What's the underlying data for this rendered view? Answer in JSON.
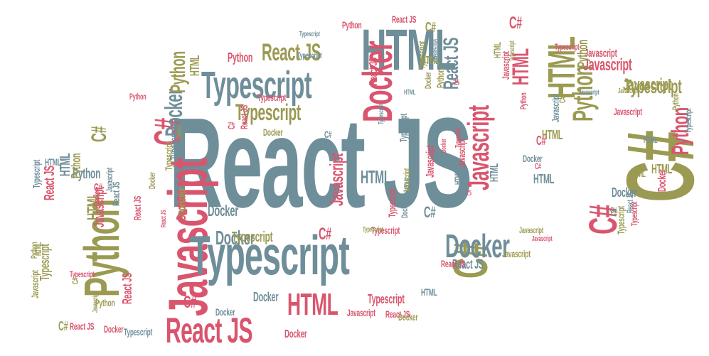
{
  "palette": {
    "slate": "#6e8e99",
    "rose": "#d9556e",
    "olive": "#9b9a52"
  },
  "words": [
    {
      "text": "React JS",
      "color": "slate",
      "rot": 0
    },
    {
      "text": "C#",
      "color": "olive",
      "rot": -90
    },
    {
      "text": "HTML",
      "color": "slate",
      "rot": 0
    },
    {
      "text": "Typescript",
      "color": "slate",
      "rot": 0
    },
    {
      "text": "Javascript",
      "color": "rose",
      "rot": -90
    },
    {
      "text": "Python",
      "color": "olive",
      "rot": -90
    },
    {
      "text": "Docker",
      "color": "rose",
      "rot": -90
    },
    {
      "text": "React JS",
      "color": "rose",
      "rot": 0
    },
    {
      "text": "HTML",
      "color": "rose",
      "rot": 0
    },
    {
      "text": "C#",
      "color": "olive",
      "rot": -90
    },
    {
      "text": "Typescript",
      "color": "slate",
      "rot": 0
    },
    {
      "text": "Docker",
      "color": "slate",
      "rot": 0
    },
    {
      "text": "React JS",
      "color": "olive",
      "rot": 0
    },
    {
      "text": "Typescript",
      "color": "olive",
      "rot": 0
    },
    {
      "text": "HTML",
      "color": "olive",
      "rot": -90
    },
    {
      "text": "C#",
      "color": "rose",
      "rot": -90
    },
    {
      "text": "Javascript",
      "color": "rose",
      "rot": -90
    },
    {
      "text": "Javascript",
      "color": "rose",
      "rot": -90
    },
    {
      "text": "C#",
      "color": "rose",
      "rot": -90
    },
    {
      "text": "React JS",
      "color": "slate",
      "rot": -90
    },
    {
      "text": "Python",
      "color": "olive",
      "rot": -90
    },
    {
      "text": "Python",
      "color": "rose",
      "rot": -90
    },
    {
      "text": "Javascript",
      "color": "rose",
      "rot": 0
    },
    {
      "text": "Docker",
      "color": "slate",
      "rot": -90
    },
    {
      "text": "C#",
      "color": "olive",
      "rot": 0
    },
    {
      "text": "HTML",
      "color": "olive",
      "rot": 0
    },
    {
      "text": "Docker",
      "color": "slate",
      "rot": 0
    },
    {
      "text": "HTML",
      "color": "slate",
      "rot": 0
    },
    {
      "text": "Python",
      "color": "olive",
      "rot": -90
    },
    {
      "text": "C#",
      "color": "rose",
      "rot": 0
    },
    {
      "text": "Docker",
      "color": "slate",
      "rot": 0
    },
    {
      "text": "HTML",
      "color": "rose",
      "rot": -90
    },
    {
      "text": "Javascript",
      "color": "olive",
      "rot": 0
    },
    {
      "text": "React JS",
      "color": "rose",
      "rot": 0
    },
    {
      "text": "C#",
      "color": "rose",
      "rot": 0
    },
    {
      "text": "HTML",
      "color": "olive",
      "rot": 0
    },
    {
      "text": "Typescript",
      "color": "olive",
      "rot": 0
    },
    {
      "text": "Python",
      "color": "rose",
      "rot": 0
    },
    {
      "text": "Docker",
      "color": "olive",
      "rot": 0
    },
    {
      "text": "React JS",
      "color": "slate",
      "rot": 0
    },
    {
      "text": "Typescript",
      "color": "rose",
      "rot": 0
    },
    {
      "text": "Typescript",
      "color": "slate",
      "rot": 0
    },
    {
      "text": "Python",
      "color": "rose",
      "rot": 0
    },
    {
      "text": "Docker",
      "color": "rose",
      "rot": 0
    },
    {
      "text": "Javascript",
      "color": "olive",
      "rot": 0
    },
    {
      "text": "Docker",
      "color": "slate",
      "rot": 0
    },
    {
      "text": "C#",
      "color": "slate",
      "rot": 0
    },
    {
      "text": "HTML",
      "color": "slate",
      "rot": 0
    },
    {
      "text": "React JS",
      "color": "rose",
      "rot": 0
    },
    {
      "text": "Docker",
      "color": "slate",
      "rot": 0
    },
    {
      "text": "Typescript",
      "color": "rose",
      "rot": 0
    },
    {
      "text": "C#",
      "color": "slate",
      "rot": 0
    },
    {
      "text": "HTML",
      "color": "olive",
      "rot": 0
    },
    {
      "text": "Javascript",
      "color": "rose",
      "rot": 0
    },
    {
      "text": "HTML",
      "color": "slate",
      "rot": 0
    },
    {
      "text": "Typescript",
      "color": "rose",
      "rot": 0
    },
    {
      "text": "Javascript",
      "color": "rose",
      "rot": 0
    },
    {
      "text": "Docker",
      "color": "slate",
      "rot": 0
    },
    {
      "text": "Typescript",
      "color": "slate",
      "rot": 0
    },
    {
      "text": "Docker",
      "color": "rose",
      "rot": 0
    },
    {
      "text": "Python",
      "color": "rose",
      "rot": 0
    },
    {
      "text": "Typescript",
      "color": "slate",
      "rot": 0
    },
    {
      "text": "React JS",
      "color": "rose",
      "rot": -90
    },
    {
      "text": "Javascript",
      "color": "rose",
      "rot": -90
    },
    {
      "text": "HTML",
      "color": "olive",
      "rot": -90
    },
    {
      "text": "Typescript",
      "color": "olive",
      "rot": -90
    },
    {
      "text": "Typescript",
      "color": "rose",
      "rot": 0
    },
    {
      "text": "Python",
      "color": "slate",
      "rot": 0
    },
    {
      "text": "HTML",
      "color": "slate",
      "rot": 0
    },
    {
      "text": "C#",
      "color": "rose",
      "rot": 0
    },
    {
      "text": "Javascript",
      "color": "rose",
      "rot": 0
    },
    {
      "text": "Docker",
      "color": "olive",
      "rot": 0
    },
    {
      "text": "React JS",
      "color": "rose",
      "rot": 0
    },
    {
      "text": "Javascript",
      "color": "olive",
      "rot": 0
    },
    {
      "text": "C#",
      "color": "rose",
      "rot": 0
    },
    {
      "text": "Docker",
      "color": "slate",
      "rot": 0
    },
    {
      "text": "Typescript",
      "color": "rose",
      "rot": 0
    },
    {
      "text": "Typescript",
      "color": "olive",
      "rot": 0
    },
    {
      "text": "Python",
      "color": "olive",
      "rot": 0
    },
    {
      "text": "C#",
      "color": "olive",
      "rot": -90
    },
    {
      "text": "HTML",
      "color": "olive",
      "rot": -90
    },
    {
      "text": "Typescript",
      "color": "olive",
      "rot": 0
    },
    {
      "text": "Javascript",
      "color": "rose",
      "rot": 0
    },
    {
      "text": "HTML",
      "color": "olive",
      "rot": 0
    },
    {
      "text": "Javascript",
      "color": "slate",
      "rot": 0
    },
    {
      "text": "Javascript",
      "color": "olive",
      "rot": 0
    },
    {
      "text": "C#",
      "color": "rose",
      "rot": 0
    },
    {
      "text": "C#",
      "color": "olive",
      "rot": 0
    },
    {
      "text": "HTML",
      "color": "slate",
      "rot": 0
    },
    {
      "text": "C#",
      "color": "slate",
      "rot": 0
    },
    {
      "text": "React JS",
      "color": "rose",
      "rot": -90
    },
    {
      "text": "Python",
      "color": "olive",
      "rot": -90
    },
    {
      "text": "HTML",
      "color": "slate",
      "rot": -90
    },
    {
      "text": "Typescript",
      "color": "slate",
      "rot": -90
    },
    {
      "text": "Docker",
      "color": "rose",
      "rot": -90
    },
    {
      "text": "Typescript",
      "color": "olive",
      "rot": -90
    },
    {
      "text": "Docker",
      "color": "olive",
      "rot": -90
    },
    {
      "text": "C#",
      "color": "rose",
      "rot": -90
    },
    {
      "text": "React JS",
      "color": "rose",
      "rot": -90
    },
    {
      "text": "HTML",
      "color": "slate",
      "rot": -90
    },
    {
      "text": "Javascript",
      "color": "olive",
      "rot": -90
    },
    {
      "text": "Javascript",
      "color": "rose",
      "rot": -90
    },
    {
      "text": "Docker",
      "color": "rose",
      "rot": -90
    },
    {
      "text": "Typescript",
      "color": "rose",
      "rot": -90
    },
    {
      "text": "C#",
      "color": "rose",
      "rot": -90
    },
    {
      "text": "HTML",
      "color": "slate",
      "rot": -90
    },
    {
      "text": "Python",
      "color": "rose",
      "rot": -90
    },
    {
      "text": "Javascript",
      "color": "slate",
      "rot": -90
    },
    {
      "text": "C#",
      "color": "olive",
      "rot": -90
    },
    {
      "text": "Python",
      "color": "olive",
      "rot": -90
    },
    {
      "text": "Python",
      "color": "olive",
      "rot": -90
    },
    {
      "text": "Typescript",
      "color": "slate",
      "rot": -90
    },
    {
      "text": "React JS",
      "color": "rose",
      "rot": -90
    },
    {
      "text": "Typescript",
      "color": "slate",
      "rot": -90
    },
    {
      "text": "HTML",
      "color": "slate",
      "rot": 0
    },
    {
      "text": "Typescript",
      "color": "olive",
      "rot": -90
    },
    {
      "text": "Docker",
      "color": "olive",
      "rot": -90
    },
    {
      "text": "Python",
      "color": "olive",
      "rot": -90
    },
    {
      "text": "Javascript",
      "color": "slate",
      "rot": -90
    },
    {
      "text": "Typescript",
      "color": "rose",
      "rot": -90
    },
    {
      "text": "Docker",
      "color": "slate",
      "rot": -90
    },
    {
      "text": "HTML",
      "color": "olive",
      "rot": -90
    },
    {
      "text": "Javascript",
      "color": "rose",
      "rot": -90
    },
    {
      "text": "Typescript",
      "color": "olive",
      "rot": -90
    },
    {
      "text": "React JS",
      "color": "rose",
      "rot": -90
    },
    {
      "text": "HTML",
      "color": "olive",
      "rot": -90
    },
    {
      "text": "Javascript",
      "color": "olive",
      "rot": -90
    },
    {
      "text": "Python",
      "color": "olive",
      "rot": -90
    },
    {
      "text": "Typescript",
      "color": "slate",
      "rot": -90
    },
    {
      "text": "React JS",
      "color": "slate",
      "rot": -90
    },
    {
      "text": "C#",
      "color": "olive",
      "rot": 0
    },
    {
      "text": "C#",
      "color": "rose",
      "rot": 0
    },
    {
      "text": "React JS",
      "color": "rose",
      "rot": 0
    },
    {
      "text": "Docker",
      "color": "olive",
      "rot": -90
    },
    {
      "text": "Typescript",
      "color": "olive",
      "rot": -90
    },
    {
      "text": "Javascript",
      "color": "olive",
      "rot": -90
    },
    {
      "text": "C#",
      "color": "olive",
      "rot": -90
    },
    {
      "text": "Javascript",
      "color": "slate",
      "rot": -90
    },
    {
      "text": "React JS",
      "color": "rose",
      "rot": -90
    },
    {
      "text": "Docker",
      "color": "rose",
      "rot": -90
    },
    {
      "text": "Typescript",
      "color": "slate",
      "rot": -90
    },
    {
      "text": "C#",
      "color": "rose",
      "rot": -90
    },
    {
      "text": "HTML",
      "color": "slate",
      "rot": -90
    },
    {
      "text": "Javascript",
      "color": "rose",
      "rot": -90
    },
    {
      "text": "Typescript",
      "color": "olive",
      "rot": -90
    },
    {
      "text": "React JS",
      "color": "slate",
      "rot": -90
    },
    {
      "text": "Typescript",
      "color": "rose",
      "rot": -90
    },
    {
      "text": "Docker",
      "color": "rose",
      "rot": -90
    },
    {
      "text": "Python",
      "color": "olive",
      "rot": -90
    },
    {
      "text": "HTML",
      "color": "olive",
      "rot": -90
    }
  ]
}
